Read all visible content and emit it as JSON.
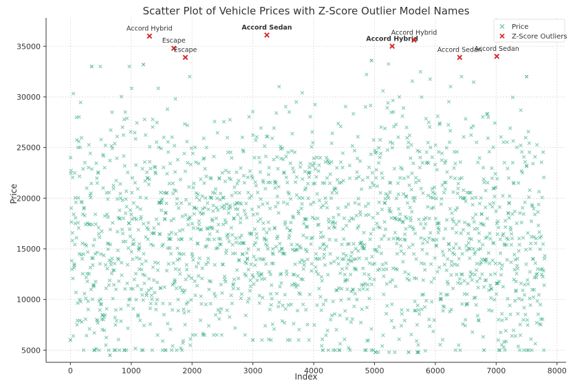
{
  "chart_data": {
    "type": "scatter",
    "title": "Scatter Plot of Vehicle Prices with Z-Score Outlier Model Names",
    "xlabel": "Index",
    "ylabel": "Price",
    "xlim": [
      -400,
      8150
    ],
    "ylim": [
      3800,
      37800
    ],
    "x_ticks": [
      0,
      1000,
      2000,
      3000,
      4000,
      5000,
      6000,
      7000,
      8000
    ],
    "y_ticks": [
      5000,
      10000,
      15000,
      20000,
      25000,
      30000,
      35000
    ],
    "grid": true,
    "legend_position": "top-right",
    "marker": "x",
    "series": [
      {
        "name": "Price",
        "color": "#1a9e77",
        "n_points": 7800,
        "segments": [
          {
            "x_range": [
              0,
              1000
            ],
            "y_range": [
              5000,
              33000
            ],
            "center": 16000
          },
          {
            "x_range": [
              1000,
              2000
            ],
            "y_range": [
              5000,
              33300
            ],
            "center": 16000
          },
          {
            "x_range": [
              2000,
              3000
            ],
            "y_range": [
              6500,
              30500
            ],
            "center": 17000
          },
          {
            "x_range": [
              3000,
              4000
            ],
            "y_range": [
              6000,
              32800
            ],
            "center": 16500
          },
          {
            "x_range": [
              4000,
              5000
            ],
            "y_range": [
              5000,
              33000
            ],
            "center": 15500
          },
          {
            "x_range": [
              5000,
              6000
            ],
            "y_range": [
              4800,
              33500
            ],
            "center": 17500
          },
          {
            "x_range": [
              6000,
              7000
            ],
            "y_range": [
              5000,
              32000
            ],
            "center": 16500
          },
          {
            "x_range": [
              7000,
              7800
            ],
            "y_range": [
              5000,
              32000
            ],
            "center": 15500
          }
        ],
        "notable_points": [
          {
            "x": 650,
            "y": 4500
          },
          {
            "x": 350,
            "y": 33000
          },
          {
            "x": 1200,
            "y": 33200
          },
          {
            "x": 4950,
            "y": 33600
          },
          {
            "x": 5560,
            "y": 4800
          },
          {
            "x": 4150,
            "y": 5000
          },
          {
            "x": 0,
            "y": 6000
          },
          {
            "x": 3000,
            "y": 6000
          },
          {
            "x": 6800,
            "y": 5000
          },
          {
            "x": 7500,
            "y": 32000
          }
        ]
      },
      {
        "name": "Z-Score Outliers",
        "color": "#d62728",
        "points": [
          {
            "x": 1300,
            "y": 36000,
            "label": "Accord Hybrid",
            "bold": false
          },
          {
            "x": 1700,
            "y": 34800,
            "label": "Escape",
            "bold": false
          },
          {
            "x": 1890,
            "y": 33900,
            "label": "Escape",
            "bold": false
          },
          {
            "x": 3230,
            "y": 36100,
            "label": "Accord Sedan",
            "bold": true
          },
          {
            "x": 5290,
            "y": 35000,
            "label": "Accord Hybrid",
            "bold": true
          },
          {
            "x": 5650,
            "y": 35600,
            "label": "Accord Hybrid",
            "bold": false
          },
          {
            "x": 6400,
            "y": 33900,
            "label": "Accord Sedan",
            "bold": false
          },
          {
            "x": 7010,
            "y": 34000,
            "label": "Accord Sedan",
            "bold": false
          }
        ]
      }
    ]
  }
}
